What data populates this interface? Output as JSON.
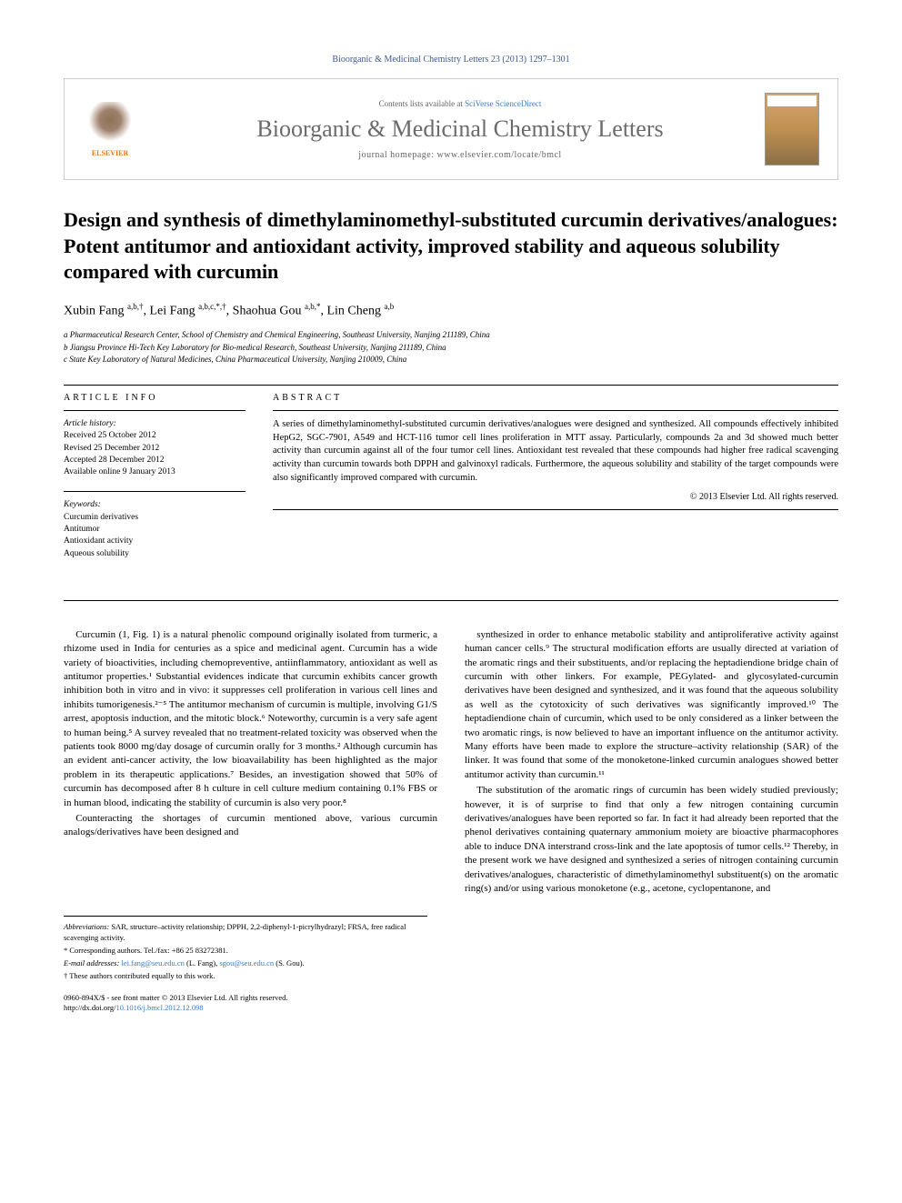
{
  "journal_ref": "Bioorganic & Medicinal Chemistry Letters 23 (2013) 1297–1301",
  "header": {
    "contents_prefix": "Contents lists available at ",
    "contents_link": "SciVerse ScienceDirect",
    "journal_name": "Bioorganic & Medicinal Chemistry Letters",
    "homepage_prefix": "journal homepage: ",
    "homepage_url": "www.elsevier.com/locate/bmcl",
    "publisher": "ELSEVIER"
  },
  "title": "Design and synthesis of dimethylaminomethyl-substituted curcumin derivatives/analogues: Potent antitumor and antioxidant activity, improved stability and aqueous solubility compared with curcumin",
  "authors_html": "Xubin Fang <sup>a,b,†</sup>, Lei Fang <sup>a,b,c,*,†</sup>, Shaohua Gou <sup>a,b,*</sup>, Lin Cheng <sup>a,b</sup>",
  "affiliations": [
    "a Pharmaceutical Research Center, School of Chemistry and Chemical Engineering, Southeast University, Nanjing 211189, China",
    "b Jiangsu Province Hi-Tech Key Laboratory for Bio-medical Research, Southeast University, Nanjing 211189, China",
    "c State Key Laboratory of Natural Medicines, China Pharmaceutical University, Nanjing 210009, China"
  ],
  "info": {
    "heading": "ARTICLE INFO",
    "history_label": "Article history:",
    "history": [
      "Received 25 October 2012",
      "Revised 25 December 2012",
      "Accepted 28 December 2012",
      "Available online 9 January 2013"
    ],
    "keywords_label": "Keywords:",
    "keywords": [
      "Curcumin derivatives",
      "Antitumor",
      "Antioxidant activity",
      "Aqueous solubility"
    ]
  },
  "abstract": {
    "heading": "ABSTRACT",
    "text": "A series of dimethylaminomethyl-substituted curcumin derivatives/analogues were designed and synthesized. All compounds effectively inhibited HepG2, SGC-7901, A549 and HCT-116 tumor cell lines proliferation in MTT assay. Particularly, compounds 2a and 3d showed much better activity than curcumin against all of the four tumor cell lines. Antioxidant test revealed that these compounds had higher free radical scavenging activity than curcumin towards both DPPH and galvinoxyl radicals. Furthermore, the aqueous solubility and stability of the target compounds were also significantly improved compared with curcumin.",
    "copyright": "© 2013 Elsevier Ltd. All rights reserved."
  },
  "body": {
    "col1": [
      "Curcumin (1, Fig. 1) is a natural phenolic compound originally isolated from turmeric, a rhizome used in India for centuries as a spice and medicinal agent. Curcumin has a wide variety of bioactivities, including chemopreventive, antiinflammatory, antioxidant as well as antitumor properties.¹ Substantial evidences indicate that curcumin exhibits cancer growth inhibition both in vitro and in vivo: it suppresses cell proliferation in various cell lines and inhibits tumorigenesis.²⁻⁵ The antitumor mechanism of curcumin is multiple, involving G1/S arrest, apoptosis induction, and the mitotic block.⁶ Noteworthy, curcumin is a very safe agent to human being.⁵ A survey revealed that no treatment-related toxicity was observed when the patients took 8000 mg/day dosage of curcumin orally for 3 months.² Although curcumin has an evident anti-cancer activity, the low bioavailability has been highlighted as the major problem in its therapeutic applications.⁷ Besides, an investigation showed that 50% of curcumin has decomposed after 8 h culture in cell culture medium containing 0.1% FBS or in human blood, indicating the stability of curcumin is also very poor.⁸",
      "Counteracting the shortages of curcumin mentioned above, various curcumin analogs/derivatives have been designed and"
    ],
    "col2": [
      "synthesized in order to enhance metabolic stability and antiproliferative activity against human cancer cells.⁹ The structural modification efforts are usually directed at variation of the aromatic rings and their substituents, and/or replacing the heptadiendione bridge chain of curcumin with other linkers. For example, PEGylated- and glycosylated-curcumin derivatives have been designed and synthesized, and it was found that the aqueous solubility as well as the cytotoxicity of such derivatives was significantly improved.¹⁰ The heptadiendione chain of curcumin, which used to be only considered as a linker between the two aromatic rings, is now believed to have an important influence on the antitumor activity. Many efforts have been made to explore the structure–activity relationship (SAR) of the linker. It was found that some of the monoketone-linked curcumin analogues showed better antitumor activity than curcumin.¹¹",
      "The substitution of the aromatic rings of curcumin has been widely studied previously; however, it is of surprise to find that only a few nitrogen containing curcumin derivatives/analogues have been reported so far. In fact it had already been reported that the phenol derivatives containing quaternary ammonium moiety are bioactive pharmacophores able to induce DNA interstrand cross-link and the late apoptosis of tumor cells.¹² Thereby, in the present work we have designed and synthesized a series of nitrogen containing curcumin derivatives/analogues, characteristic of dimethylaminomethyl substituent(s) on the aromatic ring(s) and/or using various monoketone (e.g., acetone, cyclopentanone, and"
    ]
  },
  "footnotes": {
    "abbrev_label": "Abbreviations:",
    "abbrev": " SAR, structure–activity relationship; DPPH, 2,2-diphenyl-1-picrylhydrazyl; FRSA, free radical scavenging activity.",
    "corr": "* Corresponding authors. Tel./fax: +86 25 83272381.",
    "email_label": "E-mail addresses: ",
    "email1": "lei.fang@seu.edu.cn",
    "email1_who": " (L. Fang), ",
    "email2": "sgou@seu.edu.cn",
    "email2_who": " (S. Gou).",
    "equal": "† These authors contributed equally to this work."
  },
  "doi": {
    "line1": "0960-894X/$ - see front matter © 2013 Elsevier Ltd. All rights reserved.",
    "line2_label": "http://dx.doi.org/",
    "line2_url": "10.1016/j.bmcl.2012.12.098"
  },
  "colors": {
    "link": "#3b7bc4",
    "elsevier_orange": "#e67817",
    "journal_gray": "#6b6b6b",
    "text": "#000000",
    "border": "#cccccc"
  },
  "typography": {
    "title_fontsize": 22,
    "journal_fontsize": 26,
    "body_fontsize": 11,
    "abstract_fontsize": 10.5,
    "footnote_fontsize": 8.5
  }
}
